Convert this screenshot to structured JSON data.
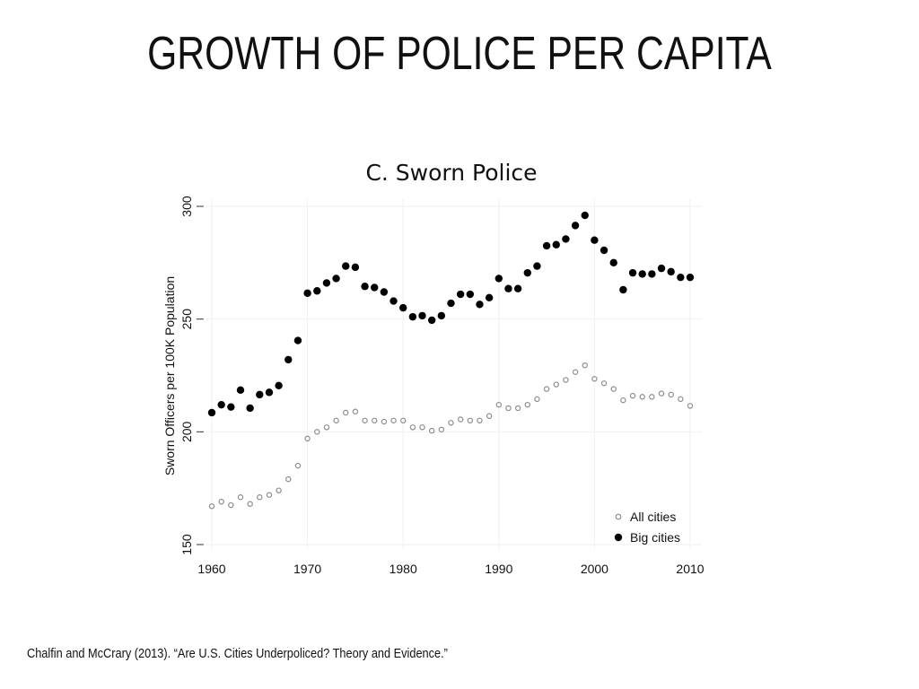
{
  "slide": {
    "title": "GROWTH OF POLICE PER CAPITA",
    "citation": "Chalfin and McCrary (2013). “Are U.S. Cities Underpoliced? Theory and Evidence.”"
  },
  "chart_data": {
    "type": "scatter",
    "title": "C. Sworn Police",
    "xlabel": "",
    "ylabel": "Sworn Officers per 100K Population",
    "xlim": [
      1960,
      2010
    ],
    "ylim": [
      150,
      300
    ],
    "xticks": [
      1960,
      1970,
      1980,
      1990,
      2000,
      2010
    ],
    "yticks": [
      150,
      200,
      250,
      300
    ],
    "grid": true,
    "legend_position": "bottom-right",
    "x": [
      1960,
      1961,
      1962,
      1963,
      1964,
      1965,
      1966,
      1967,
      1968,
      1969,
      1970,
      1971,
      1972,
      1973,
      1974,
      1975,
      1976,
      1977,
      1978,
      1979,
      1980,
      1981,
      1982,
      1983,
      1984,
      1985,
      1986,
      1987,
      1988,
      1989,
      1990,
      1991,
      1992,
      1993,
      1994,
      1995,
      1996,
      1997,
      1998,
      1999,
      2000,
      2001,
      2002,
      2003,
      2004,
      2005,
      2006,
      2007,
      2008,
      2009,
      2010
    ],
    "series": [
      {
        "name": "All cities",
        "marker": "hollow-circle",
        "color": "#8c8c8c",
        "values": [
          167,
          169,
          167.5,
          171,
          168,
          171,
          172,
          174,
          179,
          185,
          197,
          200,
          202,
          205,
          208.5,
          209,
          205,
          205,
          204.5,
          205,
          205,
          202,
          202,
          200.5,
          201,
          204,
          205.5,
          205,
          205,
          207,
          212,
          210.5,
          210.5,
          212,
          214.5,
          219,
          221,
          223,
          226.5,
          229.5,
          223.5,
          221.5,
          219,
          214,
          216,
          215.5,
          215.5,
          217,
          216.5,
          214.5,
          211.5
        ]
      },
      {
        "name": "Big cities",
        "marker": "filled-circle",
        "color": "#000000",
        "values": [
          208.5,
          212,
          211,
          218.5,
          210.5,
          216.5,
          217.5,
          220.5,
          232,
          240.5,
          261.5,
          262.5,
          266,
          268,
          273.5,
          273,
          264.5,
          264,
          262,
          258,
          255,
          251,
          251.5,
          249.5,
          251.5,
          257,
          261,
          261,
          256.5,
          259.5,
          268,
          263.5,
          263.5,
          270.5,
          273.5,
          282.5,
          283,
          285.5,
          291.5,
          296,
          285,
          280.5,
          275,
          263,
          270.5,
          270,
          270,
          272.5,
          271,
          268.5,
          268.5
        ]
      }
    ]
  }
}
